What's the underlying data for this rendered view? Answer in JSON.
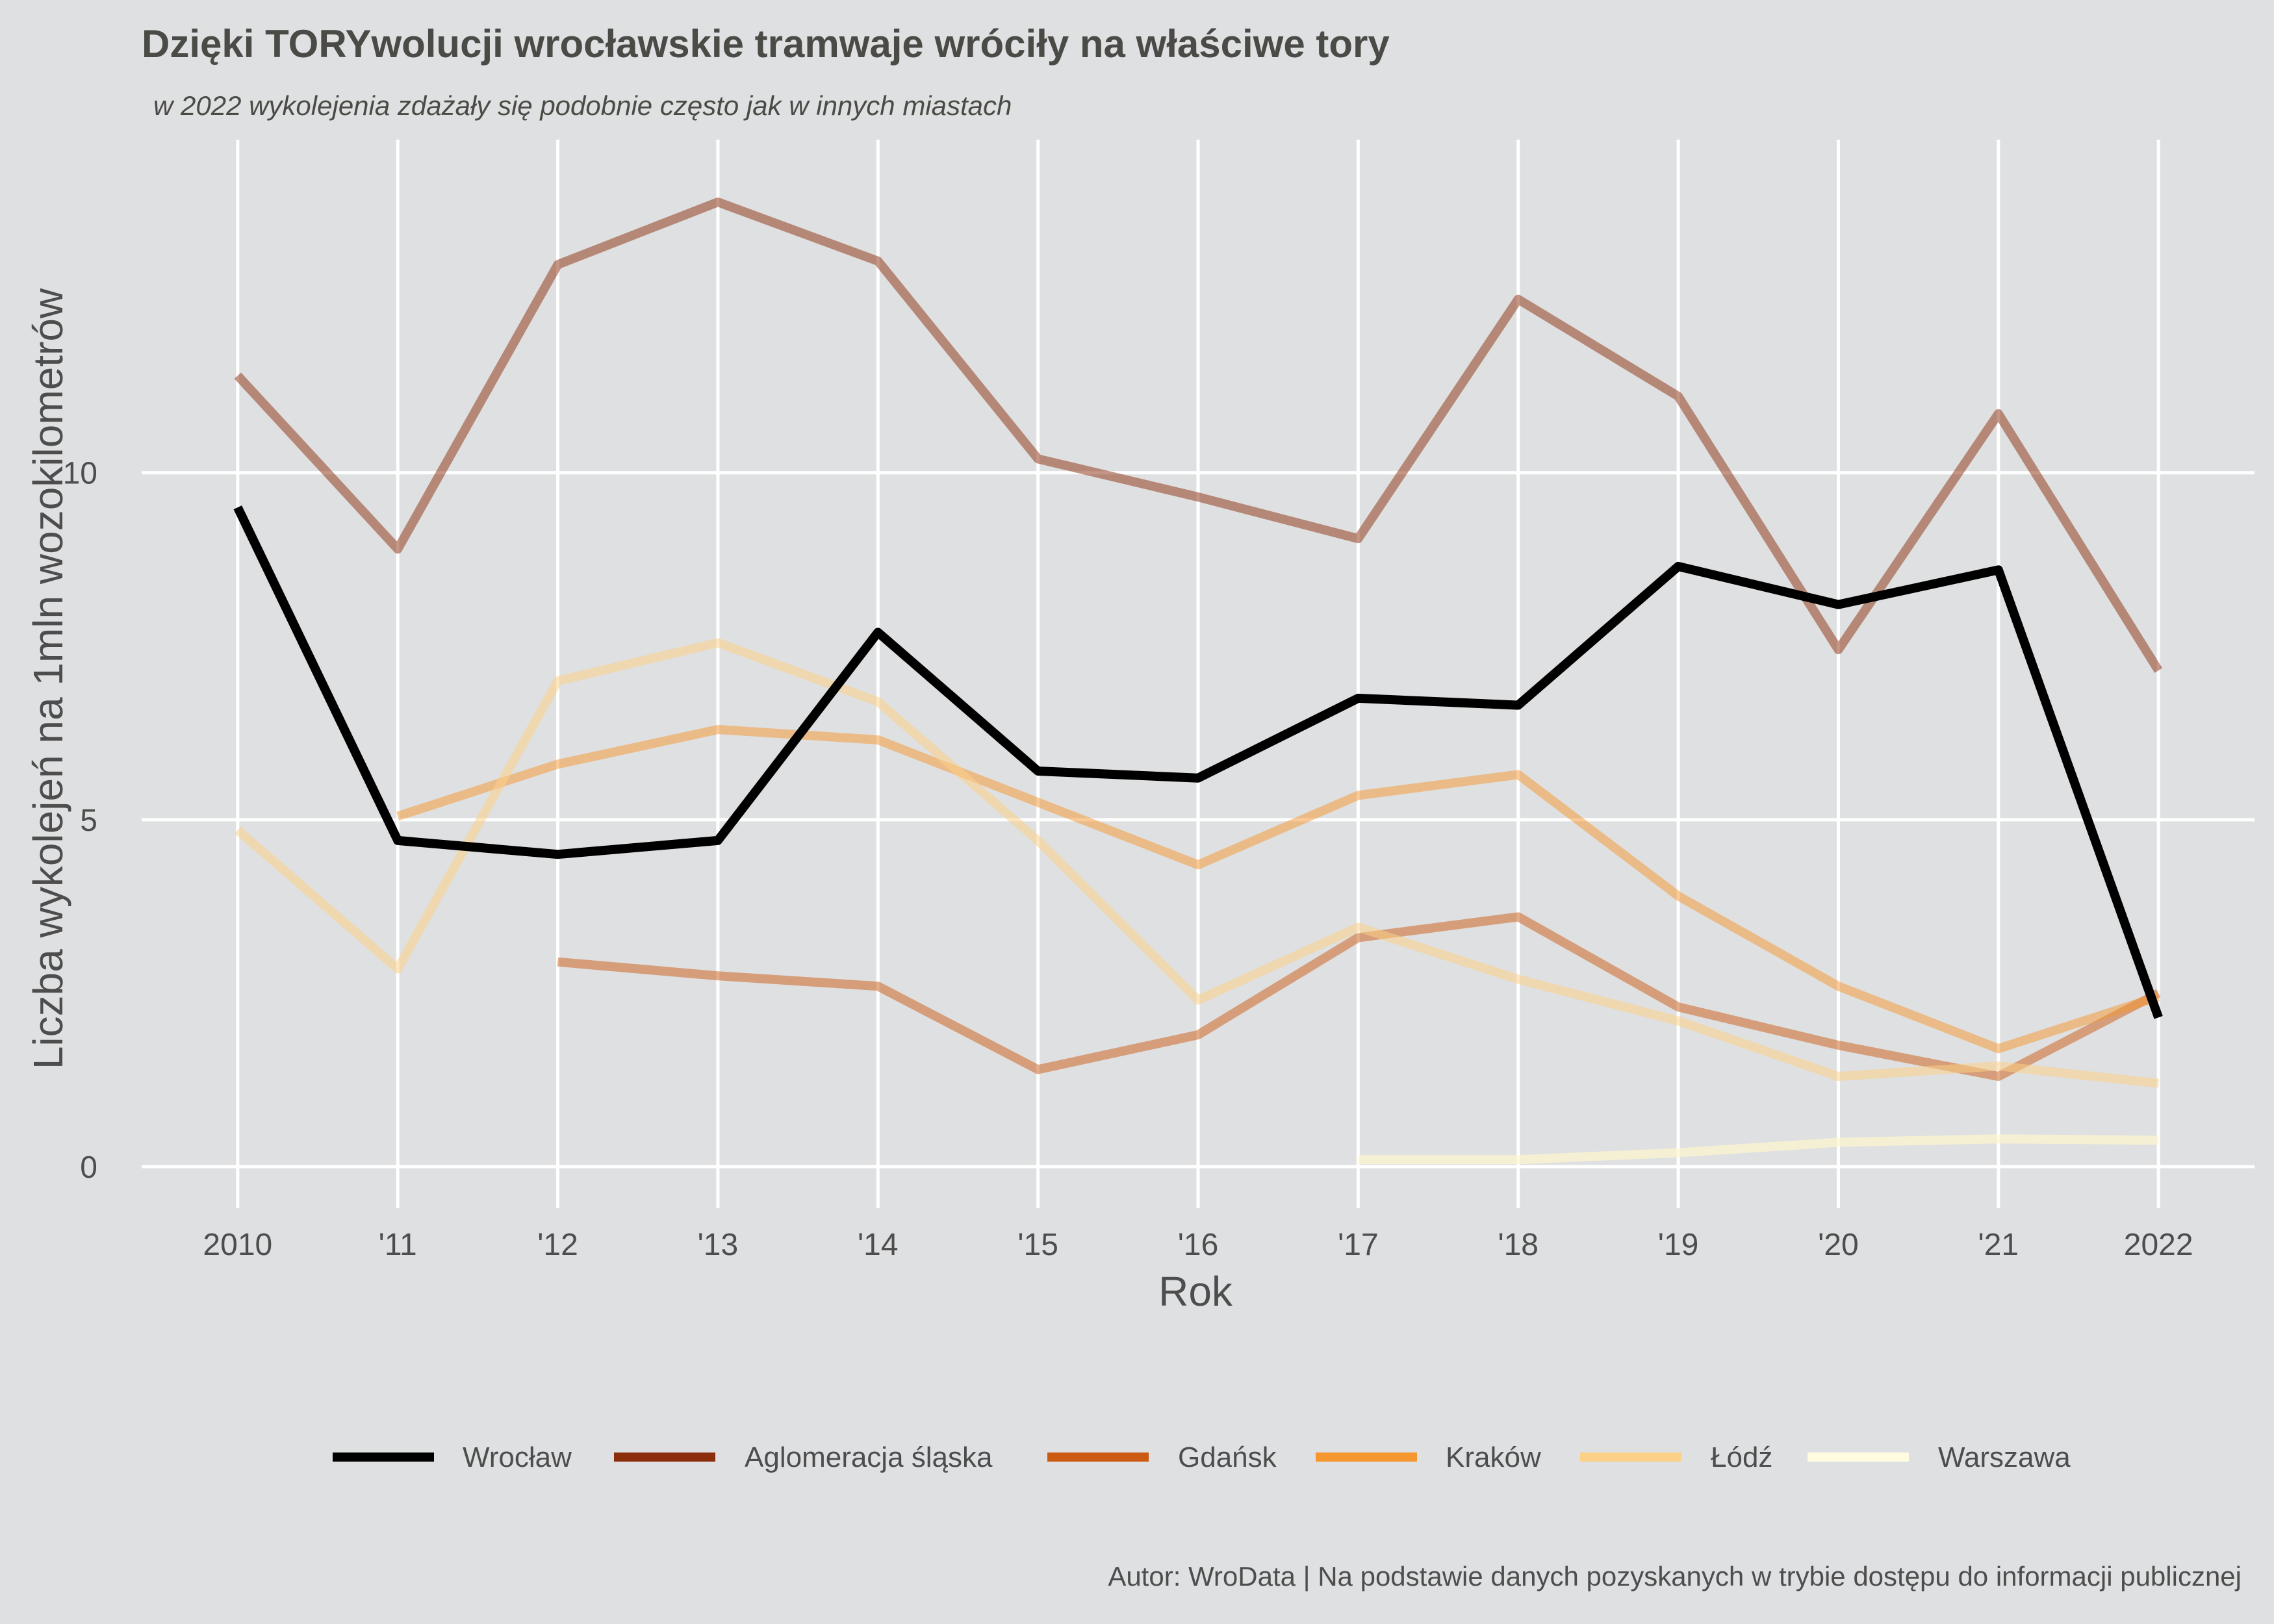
{
  "title": "Dzięki TORYwolucji wrocławskie tramwaje wróciły na właściwe tory",
  "subtitle": "w 2022 wykolejenia zdażały się podobnie często jak w innych miastach",
  "caption": "Autor: WroData | Na podstawie danych pozyskanych w trybie dostępu do informacji publicznej",
  "chart_data": {
    "type": "line",
    "title": "Dzięki TORYwolucji wrocławskie tramwaje wróciły na właściwe tory",
    "subtitle": "w 2022 wykolejenia zdażały się podobnie często jak w innych miastach",
    "xlabel": "Rok",
    "ylabel": "Liczba wykolejeń na 1mln wozokilometrów",
    "x": [
      2010,
      2011,
      2012,
      2013,
      2014,
      2015,
      2016,
      2017,
      2018,
      2019,
      2020,
      2021,
      2022
    ],
    "x_tick_labels": [
      "2010",
      "'11",
      "'12",
      "'13",
      "'14",
      "'15",
      "'16",
      "'17",
      "'18",
      "'19",
      "'20",
      "'21",
      "2022"
    ],
    "y_ticks": [
      0,
      5,
      10
    ],
    "xlim": [
      2009.4,
      2022.6
    ],
    "ylim": [
      -0.6,
      14.8
    ],
    "grid": true,
    "legend_position": "bottom",
    "series": [
      {
        "name": "Wrocław",
        "color": "#000000",
        "legend_color": "#000000",
        "opacity": 1.0,
        "values": [
          9.5,
          4.7,
          4.5,
          4.7,
          7.7,
          5.7,
          5.6,
          6.75,
          6.65,
          8.65,
          8.1,
          8.6,
          2.15
        ]
      },
      {
        "name": "Aglomeracja śląska",
        "color": "#8b2e0c",
        "legend_color": "#8b2e0c",
        "opacity": 0.5,
        "values": [
          11.4,
          8.9,
          13.0,
          13.9,
          13.05,
          10.2,
          9.65,
          9.05,
          12.5,
          11.1,
          7.45,
          10.85,
          7.15
        ]
      },
      {
        "name": "Gdańsk",
        "color": "#cc5a12",
        "legend_color": "#cc5a12",
        "opacity": 0.5,
        "values": [
          null,
          null,
          2.95,
          2.75,
          2.6,
          1.4,
          1.9,
          3.3,
          3.6,
          2.3,
          1.75,
          1.3,
          2.5
        ]
      },
      {
        "name": "Kraków",
        "color": "#f5962e",
        "legend_color": "#f5962e",
        "opacity": 0.5,
        "values": [
          null,
          5.05,
          5.8,
          6.3,
          6.15,
          5.25,
          4.35,
          5.35,
          5.65,
          3.9,
          2.6,
          1.7,
          2.45
        ]
      },
      {
        "name": "Łódź",
        "color": "#fbd087",
        "legend_color": "#fbd087",
        "opacity": 0.55,
        "values": [
          4.85,
          2.85,
          7.0,
          7.55,
          6.7,
          4.7,
          2.4,
          3.45,
          2.7,
          2.1,
          1.3,
          1.45,
          1.2
        ]
      },
      {
        "name": "Warszawa",
        "color": "#fdf6cf",
        "legend_color": "#fffbe0",
        "opacity": 0.7,
        "values": [
          null,
          null,
          null,
          null,
          null,
          null,
          null,
          0.1,
          0.1,
          0.2,
          0.35,
          0.4,
          0.38
        ]
      }
    ]
  }
}
